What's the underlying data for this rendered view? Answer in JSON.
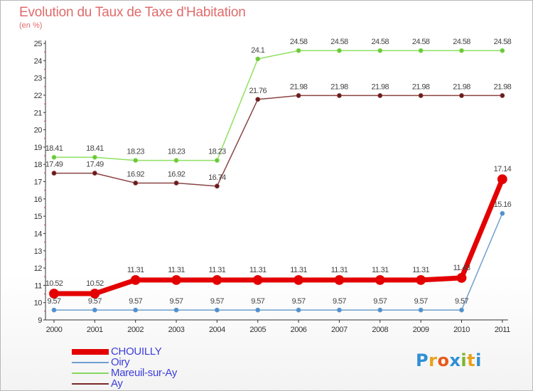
{
  "title": "Evolution du Taux de Taxe d'Habitation",
  "subtitle": "(en %)",
  "brand": {
    "text": "Proxiti",
    "letter_colors": [
      "#2f8fd6",
      "#e8a21a",
      "#e85a1a",
      "#2f8fd6",
      "#7ab62b",
      "#e8a21a",
      "#2f8fd6"
    ]
  },
  "chart_data": {
    "type": "line",
    "x": [
      "2000",
      "2001",
      "2002",
      "2003",
      "2004",
      "2005",
      "2006",
      "2007",
      "2008",
      "2009",
      "2010",
      "2011"
    ],
    "ylim": [
      9,
      25
    ],
    "yticks": [
      "9",
      "10",
      "11",
      "12",
      "13",
      "14",
      "15",
      "16",
      "17",
      "18",
      "19",
      "20",
      "21",
      "22",
      "23",
      "24",
      "25"
    ],
    "grid": false,
    "legend_position": "bottom-left",
    "series": [
      {
        "name": "CHOUILLY",
        "color": "#ff0000",
        "values": [
          10.52,
          10.52,
          11.31,
          11.31,
          11.31,
          11.31,
          11.31,
          11.31,
          11.31,
          11.31,
          11.43,
          17.14
        ],
        "labels": [
          "10.52",
          "10.52",
          "11.31",
          "11.31",
          "11.31",
          "11.31",
          "11.31",
          "11.31",
          "11.31",
          "11.31",
          "11.43",
          "17.14"
        ]
      },
      {
        "name": "Oiry",
        "color": "#6e9fd0",
        "values": [
          9.57,
          9.57,
          9.57,
          9.57,
          9.57,
          9.57,
          9.57,
          9.57,
          9.57,
          9.57,
          9.57,
          15.16
        ],
        "labels": [
          "9.57",
          "9.57",
          "9.57",
          "9.57",
          "9.57",
          "9.57",
          "9.57",
          "9.57",
          "9.57",
          "9.57",
          "9.57",
          "15.16"
        ]
      },
      {
        "name": "Mareuil-sur-Ay",
        "color": "#86d860",
        "values": [
          18.41,
          18.41,
          18.23,
          18.23,
          18.23,
          24.1,
          24.58,
          24.58,
          24.58,
          24.58,
          24.58,
          24.58
        ],
        "labels": [
          "18.41",
          "18.41",
          "18.23",
          "18.23",
          "18.23",
          "24.1",
          "24.58",
          "24.58",
          "24.58",
          "24.58",
          "24.58",
          "24.58"
        ]
      },
      {
        "name": "Ay",
        "color": "#7a2a2a",
        "values": [
          17.49,
          17.49,
          16.92,
          16.92,
          16.74,
          21.76,
          21.98,
          21.98,
          21.98,
          21.98,
          21.98,
          21.98
        ],
        "labels": [
          "17.49",
          "17.49",
          "16.92",
          "16.92",
          "16.74",
          "21.76",
          "21.98",
          "21.98",
          "21.98",
          "21.98",
          "21.98",
          "21.98"
        ]
      }
    ]
  }
}
